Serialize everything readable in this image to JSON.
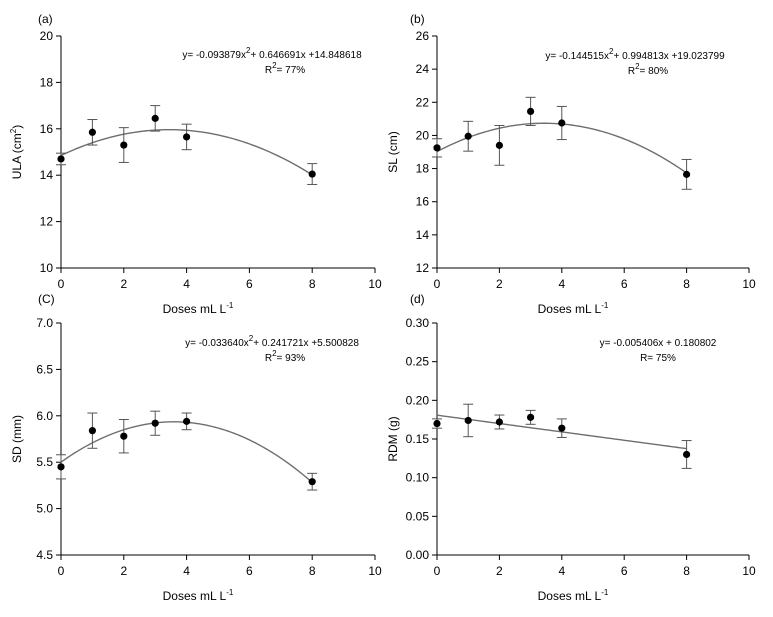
{
  "chart_data": [
    {
      "type": "scatter",
      "panel_label": "(a)",
      "xlabel": "Doses mL L",
      "xlabel_sup": "-1",
      "ylabel": "ULA (cm",
      "ylabel_sup": "2",
      "ylabel_end": ")",
      "xlim": [
        0,
        10
      ],
      "ylim": [
        10,
        20
      ],
      "xticks": [
        0,
        2,
        4,
        6,
        8,
        10
      ],
      "yticks": [
        10,
        12,
        14,
        16,
        18,
        20
      ],
      "ytick_decimals": 0,
      "x": [
        0,
        1,
        2,
        3,
        4,
        8
      ],
      "y": [
        14.7,
        15.85,
        15.3,
        16.45,
        15.65,
        14.05
      ],
      "err": [
        0.25,
        0.55,
        0.75,
        0.55,
        0.55,
        0.45
      ],
      "fit": {
        "kind": "quadratic",
        "a": -0.093879,
        "b": 0.646691,
        "c": 14.848618
      },
      "equation": {
        "p1": "y= -0.093879x",
        "p1_sup": "2",
        "p2": "+ 0.646691x +14.848618",
        "r_label": "R",
        "r_sup": "2",
        "r_value": "= 77%"
      }
    },
    {
      "type": "scatter",
      "panel_label": "(b)",
      "xlabel": "Doses mL L",
      "xlabel_sup": "-1",
      "ylabel": "SL (cm)",
      "ylabel_sup": "",
      "ylabel_end": "",
      "xlim": [
        0,
        10
      ],
      "ylim": [
        12,
        26
      ],
      "xticks": [
        0,
        2,
        4,
        6,
        8,
        10
      ],
      "yticks": [
        12,
        14,
        16,
        18,
        20,
        22,
        24,
        26
      ],
      "ytick_decimals": 0,
      "x": [
        0,
        1,
        2,
        3,
        4,
        8
      ],
      "y": [
        19.25,
        19.95,
        19.4,
        21.45,
        20.75,
        17.65
      ],
      "err": [
        0.55,
        0.9,
        1.2,
        0.85,
        1.0,
        0.9
      ],
      "fit": {
        "kind": "quadratic",
        "a": -0.144515,
        "b": 0.994813,
        "c": 19.023799
      },
      "equation": {
        "p1": "y= -0.144515x",
        "p1_sup": "2",
        "p2": "+ 0.994813x +19.023799",
        "r_label": "R",
        "r_sup": "2",
        "r_value": "= 80%"
      }
    },
    {
      "type": "scatter",
      "panel_label": "(C)",
      "xlabel": "Doses mL L",
      "xlabel_sup": "-1",
      "ylabel": "SD (mm)",
      "ylabel_sup": "",
      "ylabel_end": "",
      "xlim": [
        0,
        10
      ],
      "ylim": [
        4.5,
        7.0
      ],
      "xticks": [
        0,
        2,
        4,
        6,
        8,
        10
      ],
      "yticks": [
        4.5,
        5.0,
        5.5,
        6.0,
        6.5,
        7.0
      ],
      "ytick_decimals": 1,
      "x": [
        0,
        1,
        2,
        3,
        4,
        8
      ],
      "y": [
        5.45,
        5.84,
        5.78,
        5.92,
        5.94,
        5.29
      ],
      "err": [
        0.13,
        0.19,
        0.18,
        0.13,
        0.09,
        0.09
      ],
      "fit": {
        "kind": "quadratic",
        "a": -0.03364,
        "b": 0.241721,
        "c": 5.500828
      },
      "equation": {
        "p1": "y= -0.033640x",
        "p1_sup": "2",
        "p2": "+ 0.241721x +5.500828",
        "r_label": "R",
        "r_sup": "2",
        "r_value": "= 93%"
      }
    },
    {
      "type": "scatter",
      "panel_label": "(d)",
      "xlabel": "Doses mL L",
      "xlabel_sup": "-1",
      "ylabel": "RDM (g)",
      "ylabel_sup": "",
      "ylabel_end": "",
      "xlim": [
        0,
        10
      ],
      "ylim": [
        0,
        0.3
      ],
      "xticks": [
        0,
        2,
        4,
        6,
        8,
        10
      ],
      "yticks": [
        0.0,
        0.05,
        0.1,
        0.15,
        0.2,
        0.25,
        0.3
      ],
      "ytick_decimals": 2,
      "x": [
        0,
        1,
        2,
        3,
        4,
        8
      ],
      "y": [
        0.17,
        0.174,
        0.172,
        0.178,
        0.164,
        0.13
      ],
      "err": [
        0.006,
        0.021,
        0.009,
        0.009,
        0.012,
        0.018
      ],
      "fit": {
        "kind": "linear",
        "a": 0,
        "b": -0.005406,
        "c": 0.180802
      },
      "equation": {
        "p1": "y= -0.005406x + 0.180802",
        "p1_sup": "",
        "p2": "",
        "r_label": "R",
        "r_sup": "",
        "r_value": "= 75%"
      }
    }
  ]
}
